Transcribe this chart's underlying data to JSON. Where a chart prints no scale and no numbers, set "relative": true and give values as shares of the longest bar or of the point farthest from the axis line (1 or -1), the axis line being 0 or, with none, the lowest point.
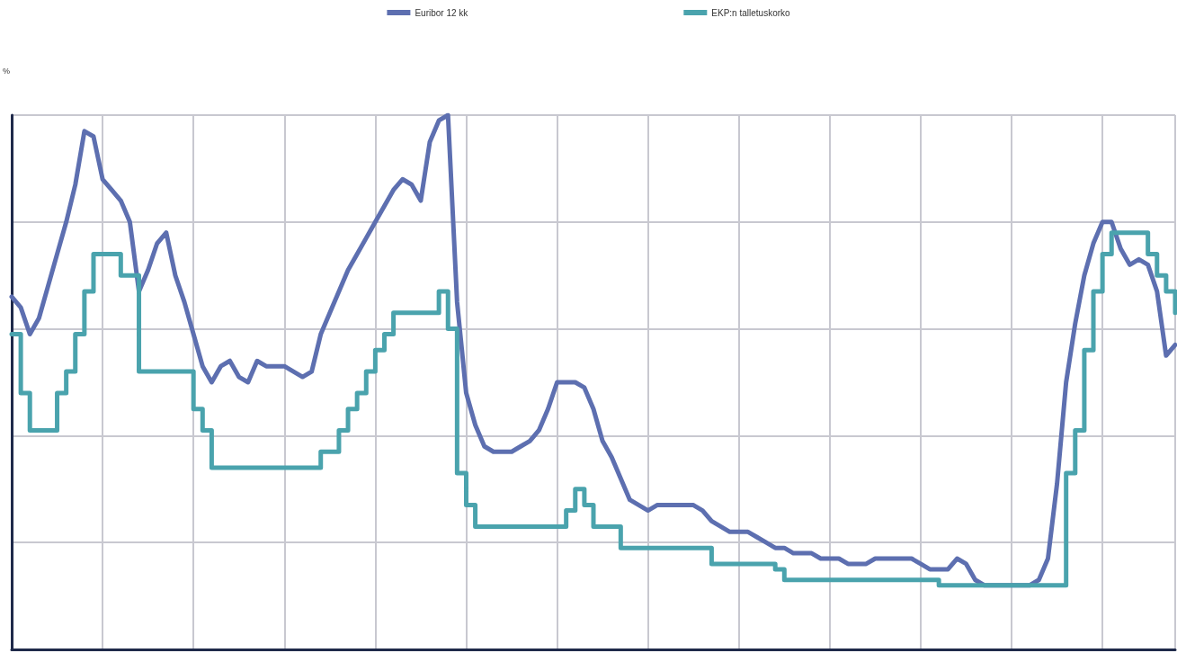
{
  "chart_data": {
    "type": "line",
    "relative": true,
    "ylabel": "%",
    "grid": true,
    "legend": "top",
    "marker": "none",
    "line_style": "solid",
    "categories": [
      null,
      null,
      null,
      null,
      null,
      null,
      null,
      null,
      null,
      null,
      null,
      null,
      null,
      null,
      null,
      null,
      null,
      null,
      null,
      null,
      null,
      null,
      null,
      null,
      null,
      null,
      null,
      null,
      null,
      null,
      null,
      null,
      null,
      null,
      null,
      null,
      null,
      null,
      null,
      null,
      null,
      null,
      null,
      null,
      null,
      null,
      null,
      null,
      null,
      null,
      null,
      null,
      null,
      null,
      null,
      null,
      null,
      null,
      null,
      null,
      null,
      null,
      null,
      null,
      null,
      null,
      null,
      null,
      null,
      null,
      null,
      null,
      null,
      null,
      null,
      null,
      null,
      null,
      null,
      null,
      null,
      null,
      null,
      null,
      null,
      null,
      null,
      null,
      null,
      null,
      null,
      null,
      null,
      null,
      null,
      null,
      null,
      null,
      null,
      null,
      null,
      null,
      null,
      null,
      null,
      null,
      null,
      null,
      null,
      null,
      null,
      null,
      null,
      null,
      null,
      null,
      null,
      null,
      null,
      null,
      null,
      null,
      null,
      null,
      null,
      null,
      null,
      null,
      null
    ],
    "series": [
      {
        "name": "Euribor 12 kk",
        "color": "#5d6fb0",
        "values": [
          0.66,
          0.64,
          0.59,
          0.62,
          0.68,
          0.74,
          0.8,
          0.87,
          0.97,
          0.96,
          0.88,
          0.86,
          0.84,
          0.8,
          0.67,
          0.71,
          0.76,
          0.78,
          0.7,
          0.65,
          0.59,
          0.53,
          0.5,
          0.53,
          0.54,
          0.51,
          0.5,
          0.54,
          0.53,
          0.53,
          0.53,
          0.52,
          0.51,
          0.52,
          0.59,
          0.63,
          0.67,
          0.71,
          0.74,
          0.77,
          0.8,
          0.83,
          0.86,
          0.88,
          0.87,
          0.84,
          0.95,
          0.99,
          1,
          0.65,
          0.48,
          0.42,
          0.38,
          0.37,
          0.37,
          0.37,
          0.38,
          0.39,
          0.41,
          0.45,
          0.5,
          0.5,
          0.5,
          0.49,
          0.45,
          0.39,
          0.36,
          0.32,
          0.28,
          0.27,
          0.26,
          0.27,
          0.27,
          0.27,
          0.27,
          0.27,
          0.26,
          0.24,
          0.23,
          0.22,
          0.22,
          0.22,
          0.21,
          0.2,
          0.19,
          0.19,
          0.18,
          0.18,
          0.18,
          0.17,
          0.17,
          0.17,
          0.16,
          0.16,
          0.16,
          0.17,
          0.17,
          0.17,
          0.17,
          0.17,
          0.16,
          0.15,
          0.15,
          0.15,
          0.17,
          0.16,
          0.13,
          0.12,
          0.12,
          0.12,
          0.12,
          0.12,
          0.12,
          0.13,
          0.17,
          0.31,
          0.5,
          0.61,
          0.7,
          0.76,
          0.8,
          0.8,
          0.75,
          0.72,
          0.73,
          0.72,
          0.67,
          0.55,
          0.57
        ]
      },
      {
        "name": "EKP:n talletuskorko",
        "type": "step",
        "color": "#4aa3ad",
        "values": [
          0.59,
          0.48,
          0.41,
          0.41,
          0.41,
          0.48,
          0.52,
          0.59,
          0.67,
          0.74,
          0.74,
          0.74,
          0.7,
          0.7,
          0.52,
          0.52,
          0.52,
          0.52,
          0.52,
          0.52,
          0.45,
          0.41,
          0.34,
          0.34,
          0.34,
          0.34,
          0.34,
          0.34,
          0.34,
          0.34,
          0.34,
          0.34,
          0.34,
          0.34,
          0.37,
          0.37,
          0.41,
          0.45,
          0.48,
          0.52,
          0.56,
          0.59,
          0.63,
          0.63,
          0.63,
          0.63,
          0.63,
          0.67,
          0.6,
          0.33,
          0.27,
          0.23,
          0.23,
          0.23,
          0.23,
          0.23,
          0.23,
          0.23,
          0.23,
          0.23,
          0.23,
          0.26,
          0.3,
          0.27,
          0.23,
          0.23,
          0.23,
          0.19,
          0.19,
          0.19,
          0.19,
          0.19,
          0.19,
          0.19,
          0.19,
          0.19,
          0.19,
          0.16,
          0.16,
          0.16,
          0.16,
          0.16,
          0.16,
          0.16,
          0.15,
          0.13,
          0.13,
          0.13,
          0.13,
          0.13,
          0.13,
          0.13,
          0.13,
          0.13,
          0.13,
          0.13,
          0.13,
          0.13,
          0.13,
          0.13,
          0.13,
          0.13,
          0.12,
          0.12,
          0.12,
          0.12,
          0.12,
          0.12,
          0.12,
          0.12,
          0.12,
          0.12,
          0.12,
          0.12,
          0.12,
          0.12,
          0.33,
          0.41,
          0.56,
          0.67,
          0.74,
          0.78,
          0.78,
          0.78,
          0.78,
          0.74,
          0.7,
          0.67,
          0.63
        ]
      }
    ]
  }
}
